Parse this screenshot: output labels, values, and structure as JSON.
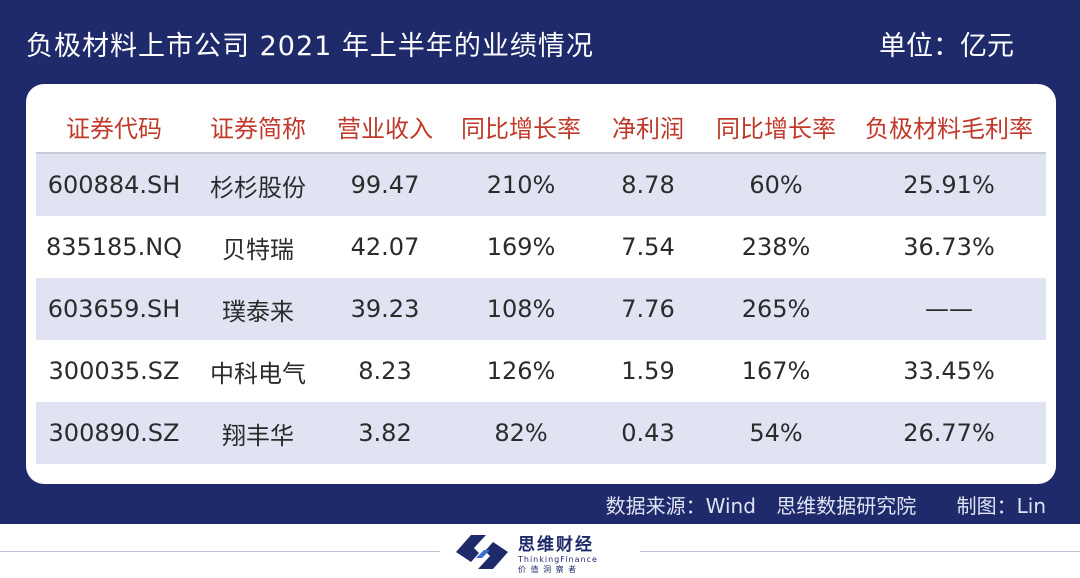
{
  "header": {
    "title": "负极材料上市公司 2021 年上半年的业绩情况",
    "unit": "单位：亿元"
  },
  "table": {
    "columns": [
      "证券代码",
      "证券简称",
      "营业收入",
      "同比增长率",
      "净利润",
      "同比增长率",
      "负极材料毛利率"
    ],
    "rows": [
      [
        "600884.SH",
        "杉杉股份",
        "99.47",
        "210%",
        "8.78",
        "60%",
        "25.91%"
      ],
      [
        "835185.NQ",
        "贝特瑞",
        "42.07",
        "169%",
        "7.54",
        "238%",
        "36.73%"
      ],
      [
        "603659.SH",
        "璞泰来",
        "39.23",
        "108%",
        "7.76",
        "265%",
        "——"
      ],
      [
        "300035.SZ",
        "中科电气",
        "8.23",
        "126%",
        "1.59",
        "167%",
        "33.45%"
      ],
      [
        "300890.SZ",
        "翔丰华",
        "3.82",
        "82%",
        "0.43",
        "54%",
        "26.77%"
      ]
    ]
  },
  "footer": {
    "source": "数据来源：Wind",
    "institute": "思维数据研究院",
    "author": "制图：Lin"
  },
  "logo": {
    "name": "思维财经",
    "english": "ThinkingFinance",
    "tagline": "价 值 洞 察 者"
  },
  "colors": {
    "panel": "#1f2a6b",
    "header_text": "#c0392b",
    "band": "#dfe3f2"
  }
}
